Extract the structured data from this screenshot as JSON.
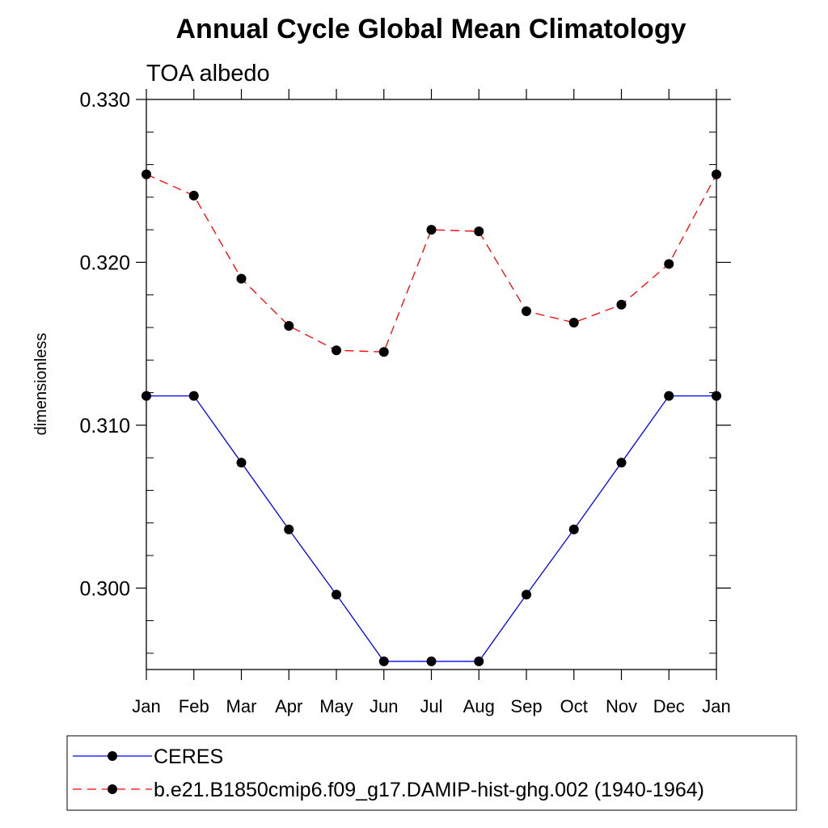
{
  "chart_data": {
    "type": "line",
    "title": "Annual Cycle Global Mean Climatology",
    "subtitle": "TOA albedo",
    "xlabel": "",
    "ylabel": "dimensionless",
    "categories": [
      "Jan",
      "Feb",
      "Mar",
      "Apr",
      "May",
      "Jun",
      "Jul",
      "Aug",
      "Sep",
      "Oct",
      "Nov",
      "Dec",
      "Jan"
    ],
    "ylim": [
      0.295,
      0.33
    ],
    "yticks": [
      0.3,
      0.31,
      0.32,
      0.33
    ],
    "ytick_labels": [
      "0.300",
      "0.310",
      "0.320",
      "0.330"
    ],
    "grid": false,
    "legend_position": "bottom",
    "series": [
      {
        "name": "CERES",
        "color": "#0000ff",
        "line_style": "solid",
        "marker": "filled-circle",
        "values": [
          0.3118,
          0.3118,
          0.3077,
          0.3036,
          0.2996,
          0.2955,
          0.2955,
          0.2955,
          0.2996,
          0.3036,
          0.3077,
          0.3118,
          0.3118
        ]
      },
      {
        "name": "b.e21.B1850cmip6.f09_g17.DAMIP-hist-ghg.002 (1940-1964)",
        "color": "#ff0000",
        "line_style": "dashed",
        "marker": "filled-circle",
        "values": [
          0.3254,
          0.3241,
          0.319,
          0.3161,
          0.3146,
          0.3145,
          0.322,
          0.3219,
          0.317,
          0.3163,
          0.3174,
          0.3199,
          0.3254
        ]
      }
    ]
  }
}
